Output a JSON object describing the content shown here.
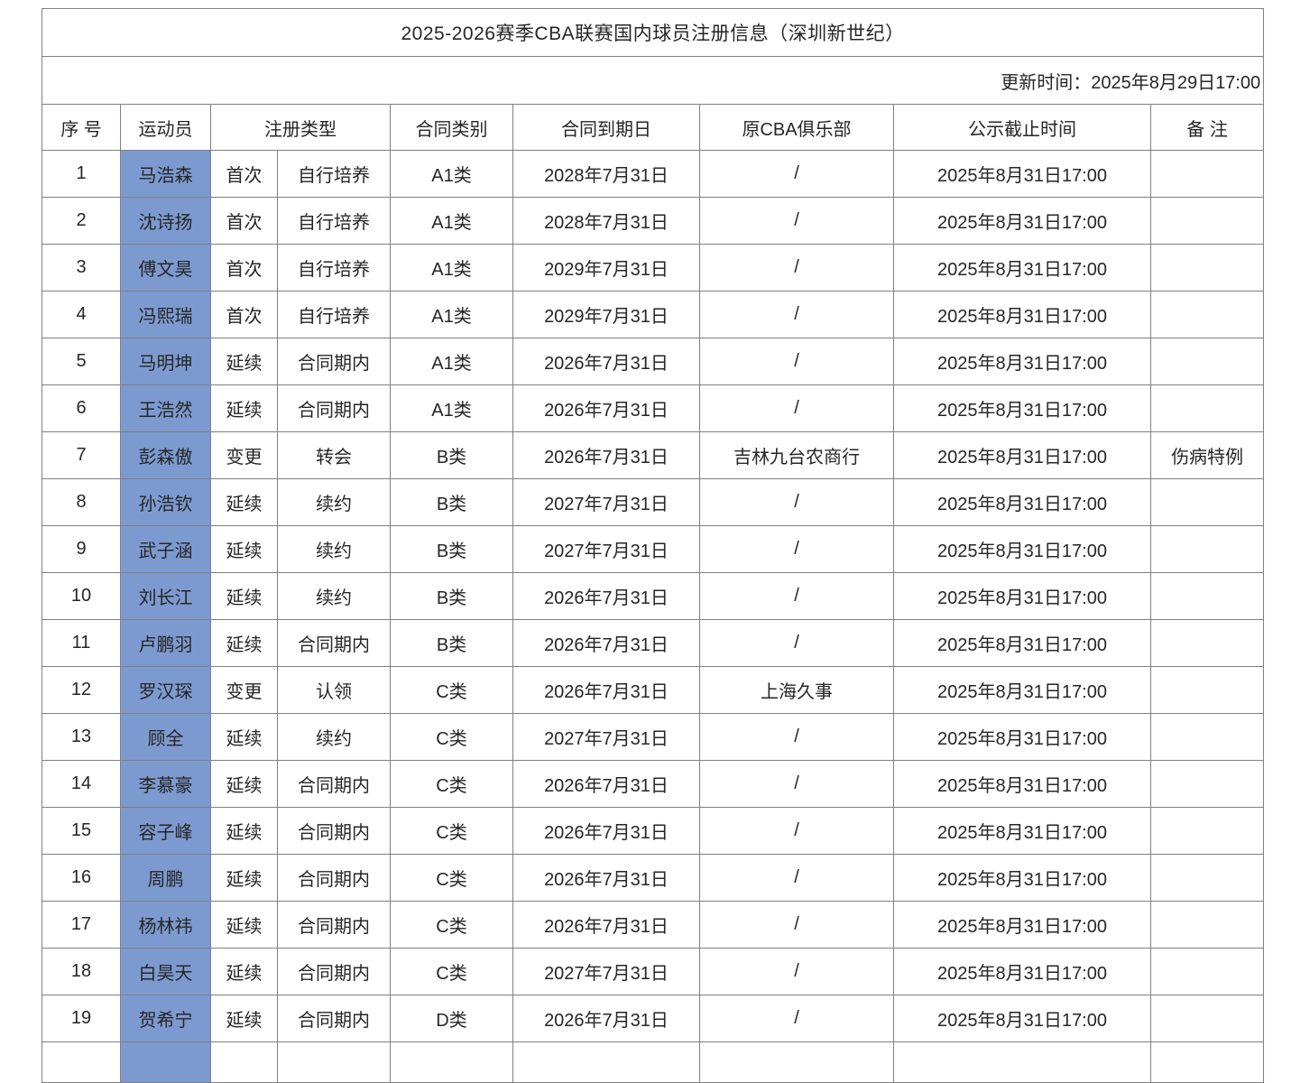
{
  "page": {
    "title": "2025-2026赛季CBA联赛国内球员注册信息（深圳新世纪）",
    "updated": "更新时间：2025年8月29日17:00"
  },
  "table": {
    "headers": {
      "no": "序 号",
      "player": "运动员",
      "reg_type": "注册类型",
      "contract_class": "合同类别",
      "contract_expiry": "合同到期日",
      "former_club": "原CBA俱乐部",
      "publicity_deadline": "公示截止时间",
      "remark": "备 注"
    },
    "rows": [
      {
        "no": "1",
        "name": "马浩森",
        "reg_kind": "首次",
        "reg_detail": "自行培养",
        "contract_class": "A1类",
        "expiry": "2028年7月31日",
        "former_club": "/",
        "deadline": "2025年8月31日17:00",
        "remark": ""
      },
      {
        "no": "2",
        "name": "沈诗扬",
        "reg_kind": "首次",
        "reg_detail": "自行培养",
        "contract_class": "A1类",
        "expiry": "2028年7月31日",
        "former_club": "/",
        "deadline": "2025年8月31日17:00",
        "remark": ""
      },
      {
        "no": "3",
        "name": "傅文昊",
        "reg_kind": "首次",
        "reg_detail": "自行培养",
        "contract_class": "A1类",
        "expiry": "2029年7月31日",
        "former_club": "/",
        "deadline": "2025年8月31日17:00",
        "remark": ""
      },
      {
        "no": "4",
        "name": "冯熙瑞",
        "reg_kind": "首次",
        "reg_detail": "自行培养",
        "contract_class": "A1类",
        "expiry": "2029年7月31日",
        "former_club": "/",
        "deadline": "2025年8月31日17:00",
        "remark": ""
      },
      {
        "no": "5",
        "name": "马明坤",
        "reg_kind": "延续",
        "reg_detail": "合同期内",
        "contract_class": "A1类",
        "expiry": "2026年7月31日",
        "former_club": "/",
        "deadline": "2025年8月31日17:00",
        "remark": ""
      },
      {
        "no": "6",
        "name": "王浩然",
        "reg_kind": "延续",
        "reg_detail": "合同期内",
        "contract_class": "A1类",
        "expiry": "2026年7月31日",
        "former_club": "/",
        "deadline": "2025年8月31日17:00",
        "remark": ""
      },
      {
        "no": "7",
        "name": "彭森傲",
        "reg_kind": "变更",
        "reg_detail": "转会",
        "contract_class": "B类",
        "expiry": "2026年7月31日",
        "former_club": "吉林九台农商行",
        "deadline": "2025年8月31日17:00",
        "remark": "伤病特例"
      },
      {
        "no": "8",
        "name": "孙浩钦",
        "reg_kind": "延续",
        "reg_detail": "续约",
        "contract_class": "B类",
        "expiry": "2027年7月31日",
        "former_club": "/",
        "deadline": "2025年8月31日17:00",
        "remark": ""
      },
      {
        "no": "9",
        "name": "武子涵",
        "reg_kind": "延续",
        "reg_detail": "续约",
        "contract_class": "B类",
        "expiry": "2027年7月31日",
        "former_club": "/",
        "deadline": "2025年8月31日17:00",
        "remark": ""
      },
      {
        "no": "10",
        "name": "刘长江",
        "reg_kind": "延续",
        "reg_detail": "续约",
        "contract_class": "B类",
        "expiry": "2026年7月31日",
        "former_club": "/",
        "deadline": "2025年8月31日17:00",
        "remark": ""
      },
      {
        "no": "11",
        "name": "卢鹏羽",
        "reg_kind": "延续",
        "reg_detail": "合同期内",
        "contract_class": "B类",
        "expiry": "2026年7月31日",
        "former_club": "/",
        "deadline": "2025年8月31日17:00",
        "remark": ""
      },
      {
        "no": "12",
        "name": "罗汉琛",
        "reg_kind": "变更",
        "reg_detail": "认领",
        "contract_class": "C类",
        "expiry": "2026年7月31日",
        "former_club": "上海久事",
        "deadline": "2025年8月31日17:00",
        "remark": ""
      },
      {
        "no": "13",
        "name": "顾全",
        "reg_kind": "延续",
        "reg_detail": "续约",
        "contract_class": "C类",
        "expiry": "2027年7月31日",
        "former_club": "/",
        "deadline": "2025年8月31日17:00",
        "remark": ""
      },
      {
        "no": "14",
        "name": "李慕豪",
        "reg_kind": "延续",
        "reg_detail": "合同期内",
        "contract_class": "C类",
        "expiry": "2026年7月31日",
        "former_club": "/",
        "deadline": "2025年8月31日17:00",
        "remark": ""
      },
      {
        "no": "15",
        "name": "容子峰",
        "reg_kind": "延续",
        "reg_detail": "合同期内",
        "contract_class": "C类",
        "expiry": "2026年7月31日",
        "former_club": "/",
        "deadline": "2025年8月31日17:00",
        "remark": ""
      },
      {
        "no": "16",
        "name": "周鹏",
        "reg_kind": "延续",
        "reg_detail": "合同期内",
        "contract_class": "C类",
        "expiry": "2026年7月31日",
        "former_club": "/",
        "deadline": "2025年8月31日17:00",
        "remark": ""
      },
      {
        "no": "17",
        "name": "杨林祎",
        "reg_kind": "延续",
        "reg_detail": "合同期内",
        "contract_class": "C类",
        "expiry": "2026年7月31日",
        "former_club": "/",
        "deadline": "2025年8月31日17:00",
        "remark": ""
      },
      {
        "no": "18",
        "name": "白昊天",
        "reg_kind": "延续",
        "reg_detail": "合同期内",
        "contract_class": "C类",
        "expiry": "2027年7月31日",
        "former_club": "/",
        "deadline": "2025年8月31日17:00",
        "remark": ""
      },
      {
        "no": "19",
        "name": "贺希宁",
        "reg_kind": "延续",
        "reg_detail": "合同期内",
        "contract_class": "D类",
        "expiry": "2026年7月31日",
        "former_club": "/",
        "deadline": "2025年8月31日17:00",
        "remark": ""
      }
    ]
  },
  "colors": {
    "player_cell_bg": "#7D9AD0",
    "grid_border": "#808080",
    "text": "#262626"
  }
}
